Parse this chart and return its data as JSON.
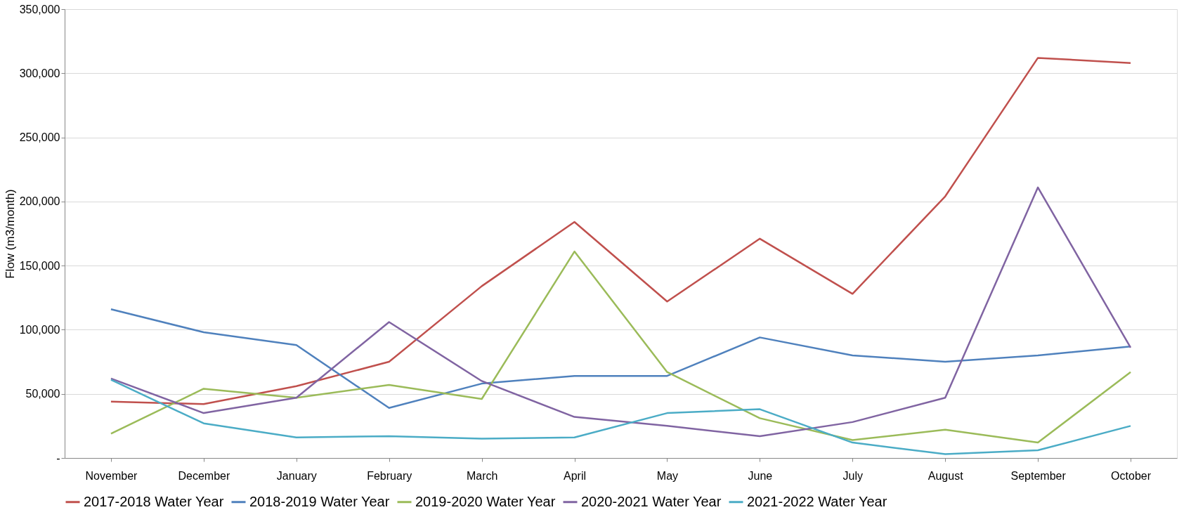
{
  "chart_data": {
    "type": "line",
    "ylabel": "Flow (m3/month)",
    "categories": [
      "November",
      "December",
      "January",
      "February",
      "March",
      "April",
      "May",
      "June",
      "July",
      "August",
      "September",
      "October"
    ],
    "series": [
      {
        "name": "2017-2018 Water Year",
        "color": "#c0504d",
        "values": [
          44000,
          42000,
          56000,
          75000,
          134000,
          184000,
          122000,
          171000,
          128000,
          204000,
          312000,
          308000
        ]
      },
      {
        "name": "2018-2019 Water Year",
        "color": "#4f81bd",
        "values": [
          116000,
          98000,
          88000,
          39000,
          58000,
          64000,
          64000,
          94000,
          80000,
          75000,
          80000,
          87000
        ]
      },
      {
        "name": "2019-2020 Water Year",
        "color": "#9bbb59",
        "values": [
          19000,
          54000,
          47000,
          57000,
          46000,
          161000,
          67000,
          31000,
          14000,
          22000,
          12000,
          67000
        ]
      },
      {
        "name": "2020-2021 Water Year",
        "color": "#8064a2",
        "values": [
          62000,
          35000,
          47000,
          106000,
          60000,
          32000,
          25000,
          17000,
          28000,
          47000,
          211000,
          86000
        ]
      },
      {
        "name": "2021-2022 Water Year",
        "color": "#4bacc6",
        "values": [
          61000,
          27000,
          16000,
          17000,
          15000,
          16000,
          35000,
          38000,
          12000,
          3000,
          6000,
          25000
        ]
      }
    ],
    "ylim": [
      0,
      350000
    ],
    "yticks": [
      {
        "value": 0,
        "label": "-"
      },
      {
        "value": 50000,
        "label": "50,000"
      },
      {
        "value": 100000,
        "label": "100,000"
      },
      {
        "value": 150000,
        "label": "150,000"
      },
      {
        "value": 200000,
        "label": "200,000"
      },
      {
        "value": 250000,
        "label": "250,000"
      },
      {
        "value": 300000,
        "label": "300,000"
      },
      {
        "value": 350000,
        "label": "350,000"
      }
    ],
    "grid": "y",
    "legend": "bottom",
    "marker": "none",
    "line_style": "solid"
  }
}
